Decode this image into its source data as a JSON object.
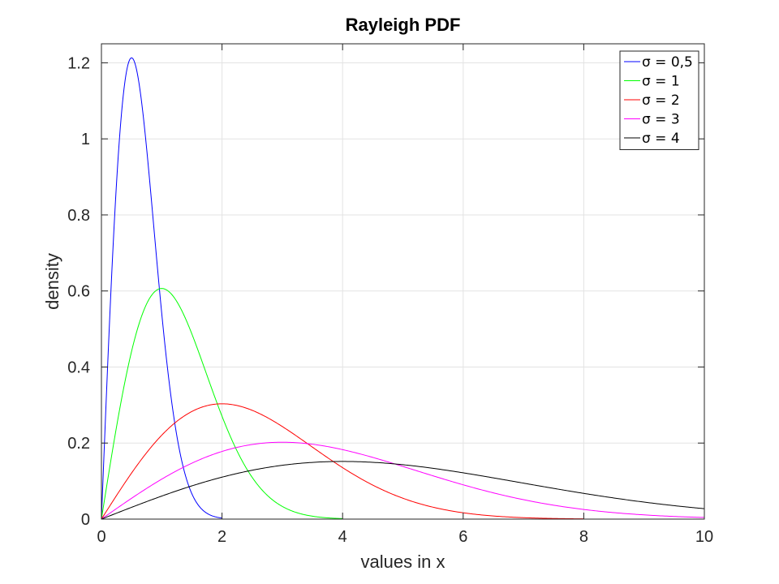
{
  "chart_data": {
    "type": "line",
    "title": "Rayleigh PDF",
    "xlabel": "values in x",
    "ylabel": "density",
    "xlim": [
      0,
      10
    ],
    "ylim": [
      0,
      1.25
    ],
    "xticks": [
      0,
      2,
      4,
      6,
      8,
      10
    ],
    "xtick_labels": [
      "0",
      "2",
      "4",
      "6",
      "8",
      "10"
    ],
    "yticks": [
      0,
      0.2,
      0.4,
      0.6,
      0.8,
      1.0,
      1.2
    ],
    "ytick_labels": [
      "0",
      "0.2",
      "0.4",
      "0.6",
      "0.8",
      "1",
      "1.2"
    ],
    "grid": true,
    "legend_position": "top-right",
    "x": [
      0,
      0.25,
      0.5,
      0.75,
      1,
      1.25,
      1.5,
      1.75,
      2,
      2.5,
      3,
      3.5,
      4,
      4.5,
      5,
      5.5,
      6,
      6.5,
      7,
      7.5,
      8,
      8.5,
      9,
      9.5,
      10
    ],
    "series": [
      {
        "name": "σ = 0,5",
        "color": "#0000ff",
        "sigma": 0.5,
        "x": [
          0,
          0.125,
          0.25,
          0.375,
          0.5,
          0.625,
          0.75,
          0.875,
          1,
          1.125,
          1.25,
          1.375,
          1.5,
          1.625,
          1.75,
          1.875,
          2
        ],
        "values": [
          0,
          0.485,
          0.882,
          1.126,
          1.213,
          1.146,
          0.974,
          0.756,
          0.541,
          0.357,
          0.22,
          0.125,
          0.067,
          0.033,
          0.015,
          0.007,
          0.003
        ]
      },
      {
        "name": "σ = 1",
        "color": "#00ff00",
        "sigma": 1,
        "x": [
          0,
          0.25,
          0.5,
          0.75,
          1,
          1.25,
          1.5,
          1.75,
          2,
          2.25,
          2.5,
          2.75,
          3,
          3.25,
          3.5,
          3.75,
          4
        ],
        "values": [
          0,
          0.242,
          0.441,
          0.566,
          0.607,
          0.573,
          0.487,
          0.378,
          0.271,
          0.178,
          0.11,
          0.063,
          0.033,
          0.017,
          0.008,
          0.003,
          0.001
        ]
      },
      {
        "name": "σ = 2",
        "color": "#ff0000",
        "sigma": 2,
        "x": [
          0,
          0.5,
          1,
          1.5,
          2,
          2.5,
          3,
          3.5,
          4,
          4.5,
          5,
          5.5,
          6,
          6.5,
          7,
          7.5,
          8
        ],
        "values": [
          0,
          0.121,
          0.221,
          0.283,
          0.303,
          0.287,
          0.243,
          0.189,
          0.135,
          0.089,
          0.055,
          0.031,
          0.017,
          0.008,
          0.004,
          0.002,
          0.001
        ]
      },
      {
        "name": "σ = 3",
        "color": "#ff00ff",
        "sigma": 3,
        "x": [
          0,
          0.5,
          1,
          1.5,
          2,
          2.5,
          3,
          3.5,
          4,
          4.5,
          5,
          5.5,
          6,
          6.5,
          7,
          7.5,
          8,
          8.5,
          9,
          9.5,
          10
        ],
        "values": [
          0,
          0.055,
          0.105,
          0.147,
          0.178,
          0.196,
          0.202,
          0.197,
          0.183,
          0.162,
          0.139,
          0.114,
          0.09,
          0.069,
          0.051,
          0.037,
          0.026,
          0.017,
          0.011,
          0.007,
          0.004
        ]
      },
      {
        "name": "σ = 4",
        "color": "#000000",
        "sigma": 4,
        "x": [
          0,
          0.5,
          1,
          1.5,
          2,
          2.5,
          3,
          3.5,
          4,
          4.5,
          5,
          5.5,
          6,
          6.5,
          7,
          7.5,
          8,
          8.5,
          9,
          9.5,
          10
        ],
        "values": [
          0,
          0.031,
          0.061,
          0.087,
          0.11,
          0.129,
          0.142,
          0.15,
          0.152,
          0.149,
          0.143,
          0.133,
          0.122,
          0.109,
          0.095,
          0.082,
          0.068,
          0.056,
          0.045,
          0.036,
          0.027
        ]
      }
    ]
  }
}
